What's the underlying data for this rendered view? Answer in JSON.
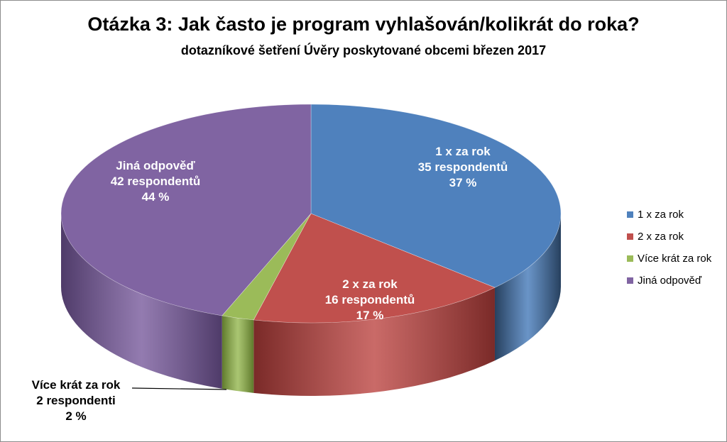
{
  "chart_data": {
    "type": "pie",
    "title": "Otázka 3: Jak často je program vyhlašován/kolikrát do roka?",
    "subtitle": "dotazníkové šetření Úvěry poskytované obcemi březen 2017",
    "slices": [
      {
        "name": "1 x za rok",
        "respondents": 35,
        "respondents_label": "35 respondentů",
        "percent": 37,
        "percent_label": "37 %",
        "color": "#4f81bd",
        "side_color": "#27405e"
      },
      {
        "name": "2 x za rok",
        "respondents": 16,
        "respondents_label": "16 respondentů",
        "percent": 17,
        "percent_label": "17 %",
        "color": "#c0504d",
        "side_color": "#7a2a28"
      },
      {
        "name": "Více krát za rok",
        "respondents": 2,
        "respondents_label": "2 respondenti",
        "percent": 2,
        "percent_label": "2 %",
        "color": "#9bbb59",
        "side_color": "#5f7a2c"
      },
      {
        "name": "Jiná odpověď",
        "respondents": 42,
        "respondents_label": "42 respondentů",
        "percent": 44,
        "percent_label": "44 %",
        "color": "#8064a2",
        "side_color": "#4f3b69"
      }
    ],
    "legend": {
      "placement": "right",
      "entries": [
        "1 x za rok",
        "2 x za rok",
        "Více krát za rok",
        "Jiná odpověď"
      ]
    }
  }
}
